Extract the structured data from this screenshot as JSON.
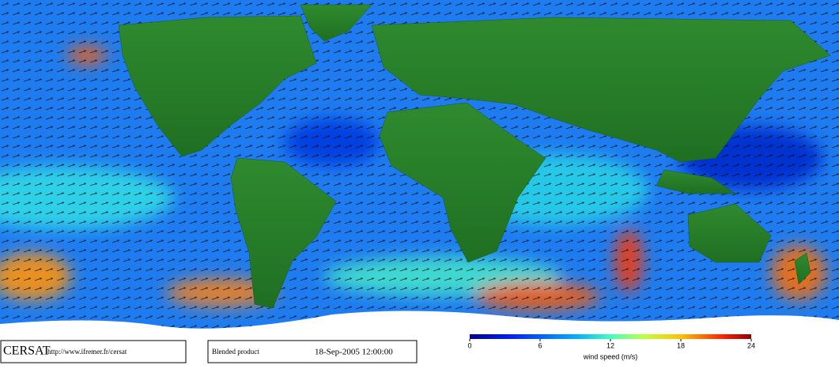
{
  "footer": {
    "logo": "CERSAT",
    "url": "http://www.ifremer.fr/cersat",
    "product": "Blended product",
    "timestamp": "18-Sep-2005 12:00:00"
  },
  "colorbar": {
    "label": "wind speed (m/s)",
    "lim": [
      0,
      24
    ],
    "ticks": [
      0,
      6,
      12,
      18,
      24
    ]
  }
}
